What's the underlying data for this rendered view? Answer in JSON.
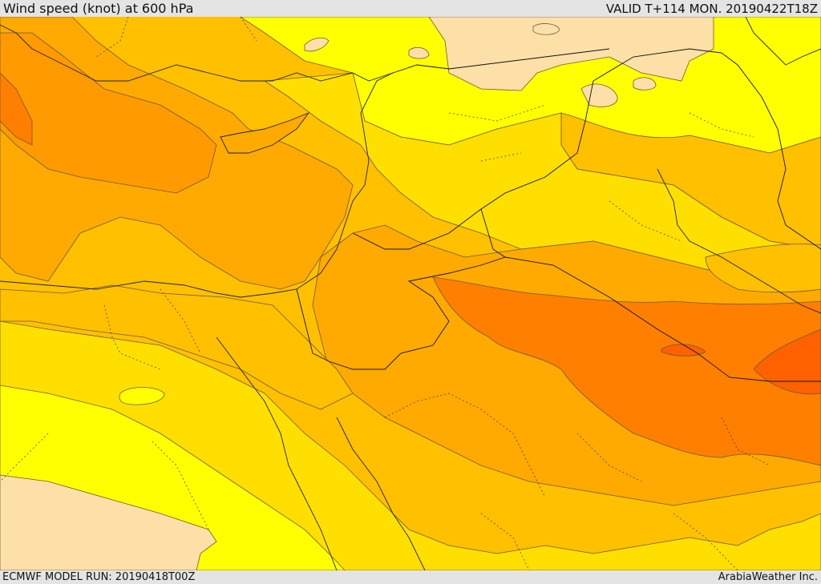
{
  "header": {
    "title": "Wind speed (knot) at 600 hPa",
    "valid_time": "VALID T+114 MON. 20190422T18Z"
  },
  "footer": {
    "model_run": "ECMWF MODEL RUN: 20190418T00Z",
    "credit": "ArabiaWeather Inc."
  },
  "map": {
    "field": "wind-speed",
    "level_hpa": 600,
    "colors": {
      "light_tan": "#fde0a8",
      "yellow": "#ffff00",
      "gold": "#ffdf00",
      "light_orange": "#ffc000",
      "orange": "#ffaa00",
      "dark_orange": "#ff9a00",
      "deep_orange": "#ff7f00",
      "red_orange": "#ff6000",
      "contour": "#6e5a3a",
      "coastline": "#222222",
      "border": "#111111"
    }
  }
}
